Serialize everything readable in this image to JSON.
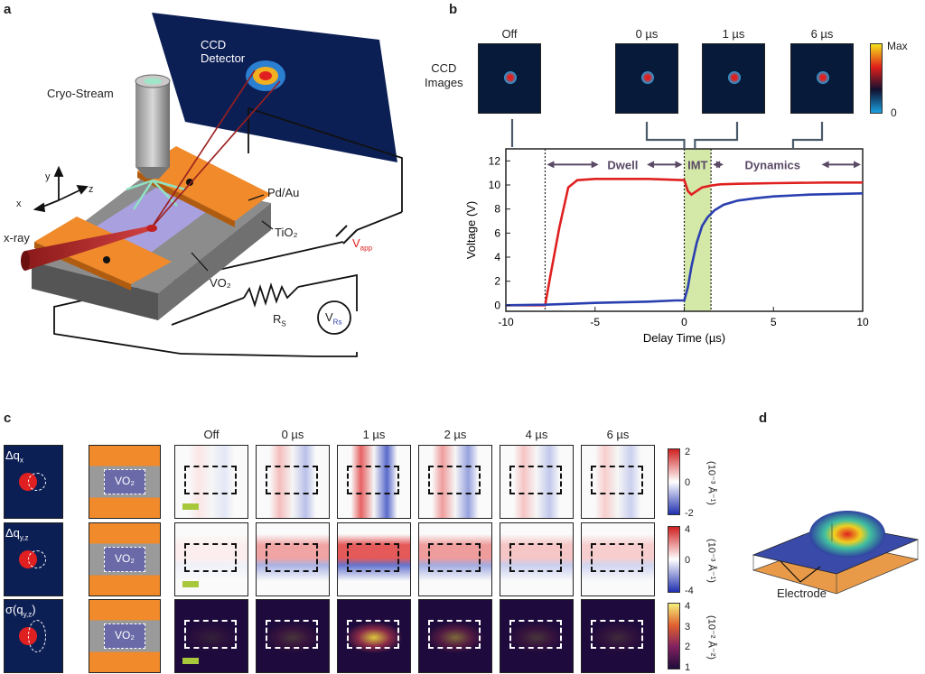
{
  "panels": {
    "a": "a",
    "b": "b",
    "c": "c",
    "d": "d"
  },
  "panel_a": {
    "ccd_detector": "CCD\nDetector",
    "cryo_stream": "Cryo-Stream",
    "pdau": "Pd/Au",
    "tio2": "TiO₂",
    "vo2": "VO₂",
    "xray": "x-ray",
    "vapp": "V",
    "vapp_sub": "app",
    "rs": "R",
    "rs_sub": "S",
    "vrs": "V",
    "vrs_sub": "Rs",
    "axes": {
      "x": "x",
      "y": "y",
      "z": "z"
    }
  },
  "panel_b": {
    "ccd_images_label": "CCD\nImages",
    "image_titles": [
      "Off",
      "0 µs",
      "1 µs",
      "6 µs"
    ],
    "colorbar": {
      "max": "Max",
      "min": "0"
    },
    "region_labels": {
      "dwell": "Dwell",
      "imt": "IMT",
      "dynamics": "Dynamics"
    }
  },
  "chart_data": {
    "type": "line",
    "xlabel": "Delay Time (µs)",
    "ylabel": "Voltage (V)",
    "xlim": [
      -10,
      10
    ],
    "ylim": [
      -0.5,
      13
    ],
    "xticks": [
      -10,
      -5,
      0,
      5,
      10
    ],
    "yticks": [
      0,
      2,
      4,
      6,
      8,
      10,
      12
    ],
    "regions": {
      "dwell": [
        -7.8,
        0
      ],
      "imt": [
        0,
        1.5
      ],
      "dynamics": [
        1.5,
        10
      ]
    },
    "series": [
      {
        "color": "#e02020",
        "x": [
          -10,
          -7.8,
          -7.5,
          -7.0,
          -6.5,
          -6.0,
          -5,
          -2,
          0,
          0.2,
          0.4,
          0.7,
          1.0,
          1.5,
          2,
          3,
          5,
          8,
          10
        ],
        "y": [
          0,
          0,
          2.5,
          6.5,
          9.8,
          10.4,
          10.5,
          10.5,
          10.4,
          9.5,
          9.2,
          9.5,
          9.8,
          9.95,
          10.05,
          10.1,
          10.15,
          10.2,
          10.2
        ]
      },
      {
        "color": "#2a3fb0",
        "x": [
          -10,
          -7.8,
          -5,
          -2,
          -0.5,
          0,
          0.2,
          0.4,
          0.7,
          1.0,
          1.3,
          1.7,
          2.2,
          3,
          4,
          5,
          7,
          10
        ],
        "y": [
          0,
          0.05,
          0.2,
          0.3,
          0.4,
          0.4,
          1.5,
          3.2,
          5.2,
          6.6,
          7.3,
          7.9,
          8.35,
          8.7,
          8.9,
          9.05,
          9.2,
          9.3
        ]
      }
    ]
  },
  "panel_c": {
    "col_titles": [
      "Off",
      "0 µs",
      "1 µs",
      "2 µs",
      "4 µs",
      "6 µs"
    ],
    "rows": [
      {
        "label": "Δq",
        "label_sub": "x",
        "vo2": "VO₂",
        "cb_ticks": [
          "2",
          "0",
          "-2"
        ],
        "unit": "(10⁻³ Å⁻¹)",
        "cmap": "rwb"
      },
      {
        "label": "Δq",
        "label_sub": "y,z",
        "vo2": "VO₂",
        "cb_ticks": [
          "4",
          "0",
          "-4"
        ],
        "unit": "(10⁻³ Å⁻¹)",
        "cmap": "rwb"
      },
      {
        "label": "σ(q",
        "label_sub": "y,z",
        "label_end": ")",
        "vo2": "VO₂",
        "cb_ticks": [
          "4",
          "3",
          "2",
          "1"
        ],
        "unit": "(10⁻² Å⁻²)",
        "cmap": "inferno"
      }
    ]
  },
  "panel_d": {
    "electrode": "Electrode"
  }
}
